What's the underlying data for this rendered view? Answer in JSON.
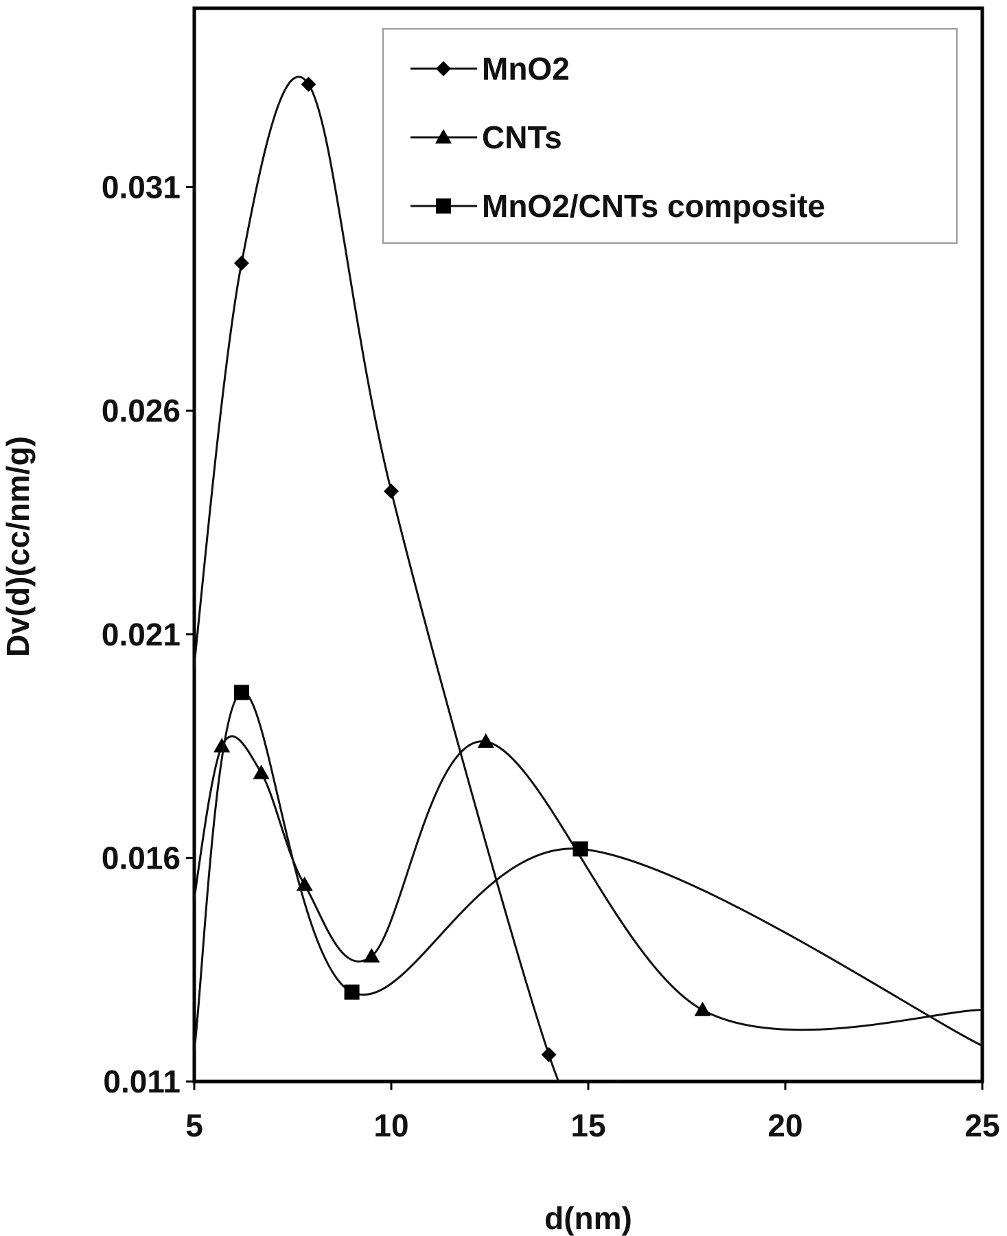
{
  "chart_data": {
    "type": "line",
    "title": "",
    "xlabel": "d(nm)",
    "ylabel": "Dv(d)(cc/nm/g)",
    "xlim": [
      5,
      25
    ],
    "ylim": [
      0.011,
      0.035
    ],
    "xticks": [
      5,
      10,
      15,
      20,
      25
    ],
    "yticks": [
      0.011,
      0.016,
      0.021,
      0.026,
      0.031
    ],
    "xtick_labels": [
      "5",
      "10",
      "15",
      "20",
      "25"
    ],
    "ytick_labels": [
      "0.011",
      "0.016",
      "0.021",
      "0.026",
      "0.031"
    ],
    "grid": false,
    "legend_position": "top-right",
    "series": [
      {
        "name": "MnO2",
        "marker": "diamond",
        "x": [
          4.9,
          6.2,
          7.9,
          10.0,
          14.0,
          15.0,
          15.8
        ],
        "y": [
          0.0195,
          0.0293,
          0.0333,
          0.0242,
          0.0116,
          0.011,
          0.011
        ]
      },
      {
        "name": "CNTs",
        "marker": "triangle",
        "x": [
          4.9,
          5.7,
          6.7,
          7.8,
          9.5,
          12.4,
          17.9,
          25.0
        ],
        "y": [
          0.0145,
          0.0185,
          0.0179,
          0.0154,
          0.0138,
          0.0186,
          0.0126,
          0.0126
        ]
      },
      {
        "name": "MnO2/CNTs composite",
        "marker": "square",
        "x": [
          5.0,
          6.2,
          9.0,
          14.8,
          25.0
        ],
        "y": [
          0.0117,
          0.0197,
          0.013,
          0.0162,
          0.0118
        ]
      }
    ]
  }
}
